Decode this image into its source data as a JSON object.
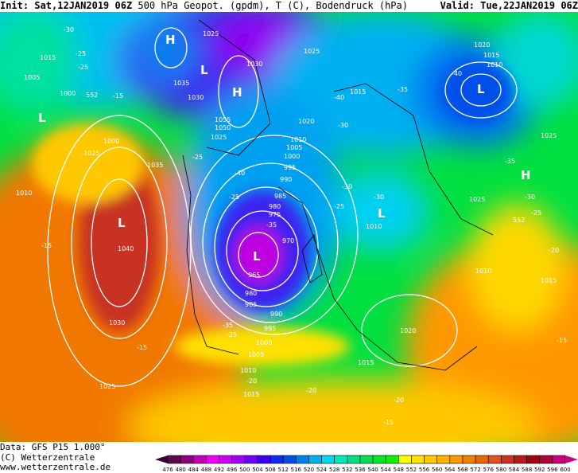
{
  "header": {
    "init": "Init: Sat,12JAN2019 06Z",
    "title": "500 hPa Geopot. (gpdm), T (C), Bodendruck (hPa)",
    "valid": "Valid: Tue,22JAN2019 06Z"
  },
  "footer": {
    "data": "Data: GFS P15 1.000°",
    "copyright": "(C) Wetterzentrale",
    "url": "www.wetterzentrale.de"
  },
  "colorbar": {
    "labels": [
      "476",
      "480",
      "484",
      "488",
      "492",
      "496",
      "500",
      "504",
      "508",
      "512",
      "516",
      "520",
      "524",
      "528",
      "532",
      "536",
      "540",
      "544",
      "548",
      "552",
      "556",
      "560",
      "564",
      "568",
      "572",
      "576",
      "580",
      "584",
      "588",
      "592",
      "596",
      "600"
    ],
    "colors": [
      "#5a0a4a",
      "#8c007a",
      "#c000b4",
      "#f000f0",
      "#c800f0",
      "#a000f0",
      "#7000f0",
      "#3c00f0",
      "#1428f0",
      "#0050e8",
      "#0080f0",
      "#00b0f0",
      "#00d8f0",
      "#00e8b8",
      "#00e080",
      "#00e050",
      "#00e828",
      "#10f000",
      "#ffff00",
      "#ffe000",
      "#ffc800",
      "#ffb000",
      "#ff9800",
      "#f08000",
      "#e86800",
      "#e05020",
      "#d03020",
      "#b81818",
      "#a00010",
      "#b00038",
      "#c8007a"
    ]
  },
  "pressure_systems": [
    {
      "type": "H",
      "x_lon_note": "",
      "label": "H"
    },
    {
      "type": "L",
      "label": "L"
    },
    {
      "type": "H",
      "label": "H"
    },
    {
      "type": "L",
      "label": "L"
    },
    {
      "type": "L",
      "label": "L"
    },
    {
      "type": "L",
      "label": "L"
    },
    {
      "type": "H",
      "label": "H"
    },
    {
      "type": "L",
      "label": "L"
    },
    {
      "type": "L",
      "label": "L"
    }
  ],
  "isobar_labels": [
    "1035",
    "1025",
    "1015",
    "1005",
    "1000",
    "1030",
    "1035",
    "1030",
    "1025",
    "1020",
    "1025",
    "1035",
    "1055",
    "1050",
    "1040",
    "1025",
    "1020",
    "1010",
    "1005",
    "1000",
    "995",
    "990",
    "985",
    "980",
    "975",
    "970",
    "965",
    "980",
    "985",
    "990",
    "995",
    "1000",
    "1005",
    "1010",
    "1015",
    "1030",
    "1025",
    "1040",
    "1010",
    "1015",
    "1020",
    "1015",
    "1010",
    "1025",
    "1025",
    "1010",
    "1015",
    "1010",
    "1015",
    "1020"
  ],
  "temperature_labels": [
    "-30",
    "-25",
    "-25",
    "-15",
    "-15",
    "-20",
    "-35",
    "-40",
    "-30",
    "-25",
    "-40",
    "-35",
    "-30",
    "-25",
    "-35",
    "-30",
    "-25",
    "-20",
    "-15",
    "-30",
    "-25",
    "-20",
    "-20",
    "-25",
    "-20",
    "-15",
    "-15",
    "-40",
    "-35",
    "-30",
    "-25"
  ],
  "geopotential_labels": [
    "552",
    "552"
  ]
}
